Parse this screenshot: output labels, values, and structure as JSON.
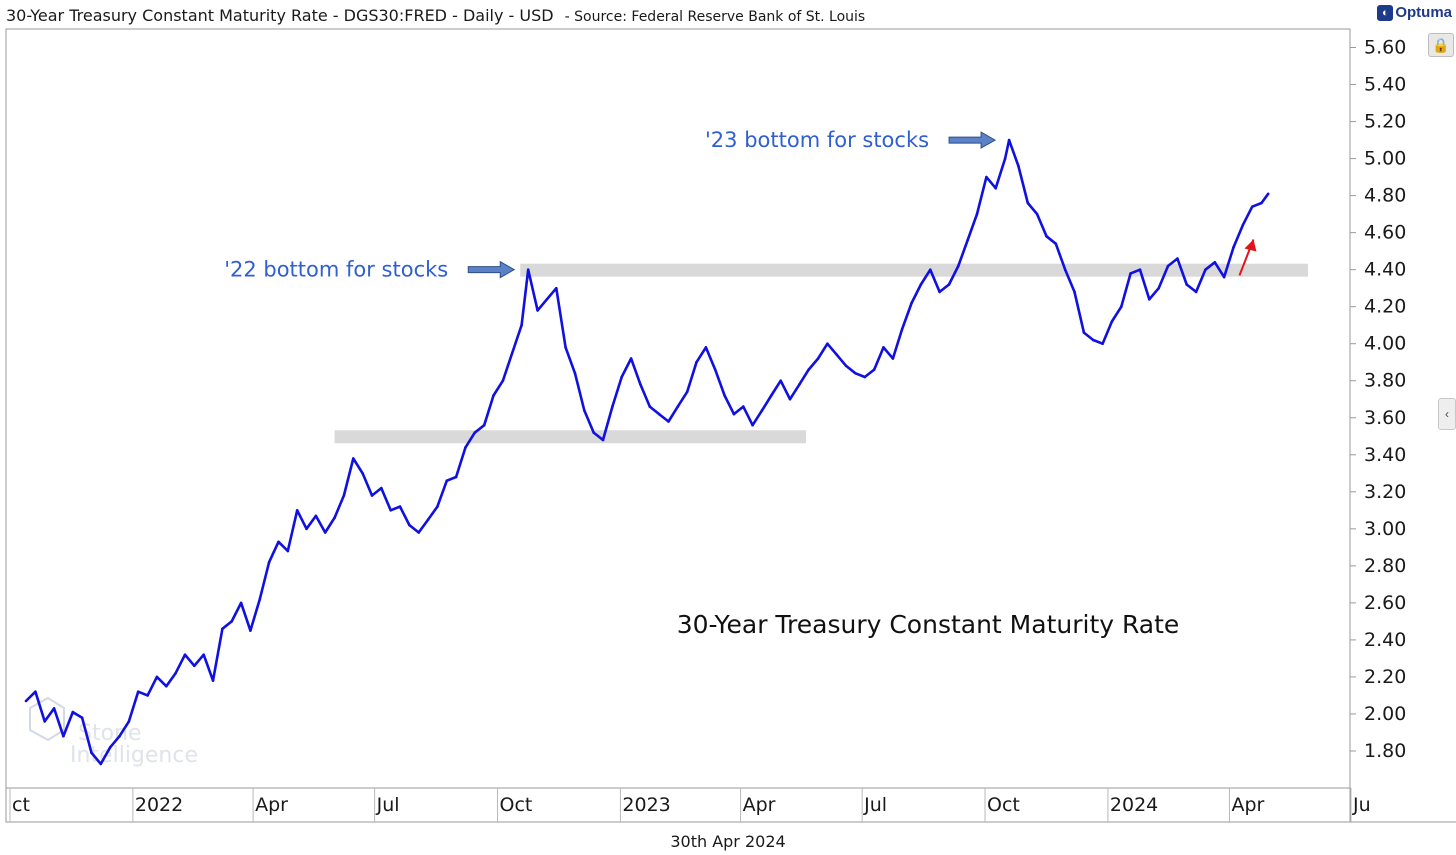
{
  "header": {
    "title": "30-Year Treasury Constant Maturity Rate - DGS30:FRED - Daily - USD",
    "source": "- Source: Federal Reserve Bank of St. Louis",
    "brand": "Optuma",
    "brand_icon": "optuma-logo-icon"
  },
  "footer": {
    "date": "30th Apr 2024"
  },
  "controls": {
    "lock_icon": "lock-icon",
    "collapse_icon": "chevron-left-icon"
  },
  "watermark": {
    "line1": "Stone",
    "line2": "Intelligence"
  },
  "colors": {
    "line": "#1010e0",
    "annotation": "#2f5fd0",
    "band": "#d9d9d9",
    "arrow_red": "#e0151a"
  },
  "chart_data": {
    "type": "line",
    "title": "30-Year Treasury Constant Maturity Rate",
    "xlabel": "",
    "ylabel": "",
    "ylim": [
      1.6,
      5.7
    ],
    "grid": false,
    "y_axis_position": "right",
    "y_ticks": [
      "1.80",
      "2.00",
      "2.20",
      "2.40",
      "2.60",
      "2.80",
      "3.00",
      "3.20",
      "3.40",
      "3.60",
      "3.80",
      "4.00",
      "4.20",
      "4.40",
      "4.60",
      "4.80",
      "5.00",
      "5.20",
      "5.40",
      "5.60"
    ],
    "x_tick_labels": [
      {
        "date": "2021-10-01",
        "label": "ct"
      },
      {
        "date": "2022-01-01",
        "label": "2022"
      },
      {
        "date": "2022-04-01",
        "label": "Apr"
      },
      {
        "date": "2022-07-01",
        "label": "Jul"
      },
      {
        "date": "2022-10-01",
        "label": "Oct"
      },
      {
        "date": "2023-01-01",
        "label": "2023"
      },
      {
        "date": "2023-04-01",
        "label": "Apr"
      },
      {
        "date": "2023-07-01",
        "label": "Jul"
      },
      {
        "date": "2023-10-01",
        "label": "Oct"
      },
      {
        "date": "2024-01-01",
        "label": "2024"
      },
      {
        "date": "2024-04-01",
        "label": "Apr"
      },
      {
        "date": "2024-07-01",
        "label": "Ju"
      }
    ],
    "series": [
      {
        "values": [
          [
            "2021-10-13",
            2.07
          ],
          [
            "2021-10-20",
            2.12
          ],
          [
            "2021-10-27",
            1.96
          ],
          [
            "2021-11-03",
            2.03
          ],
          [
            "2021-11-10",
            1.88
          ],
          [
            "2021-11-17",
            2.01
          ],
          [
            "2021-11-24",
            1.98
          ],
          [
            "2021-12-01",
            1.79
          ],
          [
            "2021-12-08",
            1.73
          ],
          [
            "2021-12-15",
            1.82
          ],
          [
            "2021-12-22",
            1.88
          ],
          [
            "2021-12-29",
            1.96
          ],
          [
            "2022-01-05",
            2.12
          ],
          [
            "2022-01-12",
            2.1
          ],
          [
            "2022-01-19",
            2.2
          ],
          [
            "2022-01-26",
            2.15
          ],
          [
            "2022-02-02",
            2.22
          ],
          [
            "2022-02-09",
            2.32
          ],
          [
            "2022-02-16",
            2.26
          ],
          [
            "2022-02-23",
            2.32
          ],
          [
            "2022-03-02",
            2.18
          ],
          [
            "2022-03-09",
            2.46
          ],
          [
            "2022-03-16",
            2.5
          ],
          [
            "2022-03-23",
            2.6
          ],
          [
            "2022-03-30",
            2.45
          ],
          [
            "2022-04-06",
            2.62
          ],
          [
            "2022-04-13",
            2.82
          ],
          [
            "2022-04-20",
            2.93
          ],
          [
            "2022-04-27",
            2.88
          ],
          [
            "2022-05-04",
            3.1
          ],
          [
            "2022-05-11",
            3.0
          ],
          [
            "2022-05-18",
            3.07
          ],
          [
            "2022-05-25",
            2.98
          ],
          [
            "2022-06-01",
            3.06
          ],
          [
            "2022-06-08",
            3.18
          ],
          [
            "2022-06-15",
            3.38
          ],
          [
            "2022-06-22",
            3.3
          ],
          [
            "2022-06-29",
            3.18
          ],
          [
            "2022-07-06",
            3.22
          ],
          [
            "2022-07-13",
            3.1
          ],
          [
            "2022-07-20",
            3.12
          ],
          [
            "2022-07-27",
            3.02
          ],
          [
            "2022-08-03",
            2.98
          ],
          [
            "2022-08-10",
            3.05
          ],
          [
            "2022-08-17",
            3.12
          ],
          [
            "2022-08-24",
            3.26
          ],
          [
            "2022-08-31",
            3.28
          ],
          [
            "2022-09-07",
            3.44
          ],
          [
            "2022-09-14",
            3.52
          ],
          [
            "2022-09-21",
            3.56
          ],
          [
            "2022-09-28",
            3.72
          ],
          [
            "2022-10-05",
            3.8
          ],
          [
            "2022-10-12",
            3.95
          ],
          [
            "2022-10-19",
            4.1
          ],
          [
            "2022-10-24",
            4.4
          ],
          [
            "2022-10-31",
            4.18
          ],
          [
            "2022-11-07",
            4.24
          ],
          [
            "2022-11-14",
            4.3
          ],
          [
            "2022-11-21",
            3.98
          ],
          [
            "2022-11-28",
            3.84
          ],
          [
            "2022-12-05",
            3.64
          ],
          [
            "2022-12-12",
            3.52
          ],
          [
            "2022-12-19",
            3.48
          ],
          [
            "2022-12-26",
            3.66
          ],
          [
            "2023-01-02",
            3.82
          ],
          [
            "2023-01-09",
            3.92
          ],
          [
            "2023-01-16",
            3.78
          ],
          [
            "2023-01-23",
            3.66
          ],
          [
            "2023-01-30",
            3.62
          ],
          [
            "2023-02-06",
            3.58
          ],
          [
            "2023-02-13",
            3.66
          ],
          [
            "2023-02-20",
            3.74
          ],
          [
            "2023-02-27",
            3.9
          ],
          [
            "2023-03-06",
            3.98
          ],
          [
            "2023-03-13",
            3.86
          ],
          [
            "2023-03-20",
            3.72
          ],
          [
            "2023-03-27",
            3.62
          ],
          [
            "2023-04-03",
            3.66
          ],
          [
            "2023-04-10",
            3.56
          ],
          [
            "2023-04-17",
            3.64
          ],
          [
            "2023-04-24",
            3.72
          ],
          [
            "2023-05-01",
            3.8
          ],
          [
            "2023-05-08",
            3.7
          ],
          [
            "2023-05-15",
            3.78
          ],
          [
            "2023-05-22",
            3.86
          ],
          [
            "2023-05-29",
            3.92
          ],
          [
            "2023-06-05",
            4.0
          ],
          [
            "2023-06-12",
            3.94
          ],
          [
            "2023-06-19",
            3.88
          ],
          [
            "2023-06-26",
            3.84
          ],
          [
            "2023-07-03",
            3.82
          ],
          [
            "2023-07-10",
            3.86
          ],
          [
            "2023-07-17",
            3.98
          ],
          [
            "2023-07-24",
            3.92
          ],
          [
            "2023-07-31",
            4.08
          ],
          [
            "2023-08-07",
            4.22
          ],
          [
            "2023-08-14",
            4.32
          ],
          [
            "2023-08-21",
            4.4
          ],
          [
            "2023-08-28",
            4.28
          ],
          [
            "2023-09-04",
            4.32
          ],
          [
            "2023-09-11",
            4.42
          ],
          [
            "2023-09-18",
            4.56
          ],
          [
            "2023-09-25",
            4.7
          ],
          [
            "2023-10-02",
            4.9
          ],
          [
            "2023-10-09",
            4.84
          ],
          [
            "2023-10-16",
            5.0
          ],
          [
            "2023-10-19",
            5.1
          ],
          [
            "2023-10-26",
            4.96
          ],
          [
            "2023-11-02",
            4.76
          ],
          [
            "2023-11-09",
            4.7
          ],
          [
            "2023-11-16",
            4.58
          ],
          [
            "2023-11-23",
            4.54
          ],
          [
            "2023-11-30",
            4.4
          ],
          [
            "2023-12-07",
            4.28
          ],
          [
            "2023-12-14",
            4.06
          ],
          [
            "2023-12-21",
            4.02
          ],
          [
            "2023-12-28",
            4.0
          ],
          [
            "2024-01-04",
            4.12
          ],
          [
            "2024-01-11",
            4.2
          ],
          [
            "2024-01-18",
            4.38
          ],
          [
            "2024-01-25",
            4.4
          ],
          [
            "2024-02-01",
            4.24
          ],
          [
            "2024-02-08",
            4.3
          ],
          [
            "2024-02-15",
            4.42
          ],
          [
            "2024-02-22",
            4.46
          ],
          [
            "2024-02-29",
            4.32
          ],
          [
            "2024-03-07",
            4.28
          ],
          [
            "2024-03-14",
            4.4
          ],
          [
            "2024-03-21",
            4.44
          ],
          [
            "2024-03-28",
            4.36
          ],
          [
            "2024-04-04",
            4.52
          ],
          [
            "2024-04-11",
            4.64
          ],
          [
            "2024-04-18",
            4.74
          ],
          [
            "2024-04-25",
            4.76
          ],
          [
            "2024-04-30",
            4.81
          ]
        ]
      }
    ],
    "annotations": [
      {
        "text": "'22 bottom for stocks",
        "date": "2022-10-24",
        "value": 4.4,
        "arrow_color": "steel-blue",
        "arrow_icon": "arrow-right-icon"
      },
      {
        "text": "'23 bottom for stocks",
        "date": "2023-10-19",
        "value": 5.1,
        "arrow_color": "steel-blue",
        "arrow_icon": "arrow-right-icon"
      },
      {
        "text": "",
        "arrow_color": "red",
        "arrow_icon": "arrow-up-right-icon",
        "date": "2024-04-10",
        "value": 4.52
      }
    ],
    "support_bands": [
      {
        "start": "2022-06-01",
        "end": "2023-05-20",
        "value": 3.5
      },
      {
        "start": "2022-10-18",
        "end": "2024-07-15",
        "value": 4.4
      }
    ]
  }
}
